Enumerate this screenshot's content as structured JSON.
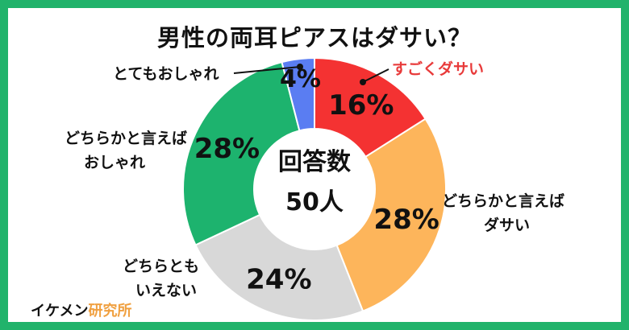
{
  "colors": {
    "frame": "#21b36b",
    "accent_red": "#e83a3a",
    "brand_orange": "#f0a040"
  },
  "brand": {
    "part1": "イケメン",
    "part2": "研究所"
  },
  "chart_data": {
    "type": "pie",
    "donut": true,
    "title": "男性の両耳ピアスはダサい？",
    "center_label": [
      "回答数",
      "50人"
    ],
    "slices": [
      {
        "label": "すごくダサい",
        "value": 16,
        "display": "16%",
        "color": "#f43232"
      },
      {
        "label": "どちらかと言えばダサい",
        "value": 28,
        "display": "28%",
        "color": "#fdb55b"
      },
      {
        "label": "どちらともいえない",
        "value": 24,
        "display": "24%",
        "color": "#d8d8d8"
      },
      {
        "label": "どちらかと言えばおしゃれ",
        "value": 28,
        "display": "28%",
        "color": "#1db36e"
      },
      {
        "label": "とてもおしゃれ",
        "value": 4,
        "display": "4%",
        "color": "#5a7df2"
      }
    ],
    "labels_display": {
      "very_lame": "すごくダサい",
      "lame_line1": "どちらかと言えば",
      "lame_line2": "ダサい",
      "neutral_line1": "どちらとも",
      "neutral_line2": "いえない",
      "stylish_line1": "どちらかと言えば",
      "stylish_line2": "おしゃれ",
      "very_stylish": "とてもおしゃれ"
    }
  }
}
